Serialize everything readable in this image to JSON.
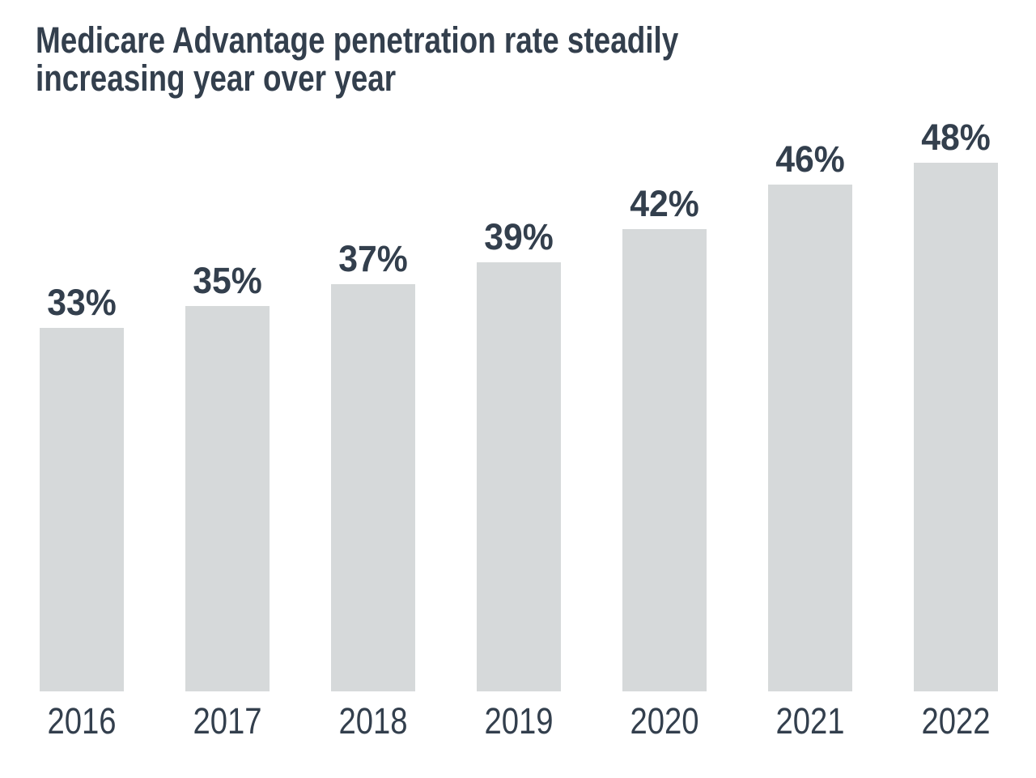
{
  "title": {
    "text": "Medicare Advantage penetration rate steadily increasing year over year",
    "lines": [
      "Medicare Advantage penetration rate steadily",
      "increasing year over year"
    ]
  },
  "chart_data": {
    "type": "bar",
    "title": "Medicare Advantage penetration rate steadily increasing year over year",
    "categories": [
      "2016",
      "2017",
      "2018",
      "2019",
      "2020",
      "2021",
      "2022"
    ],
    "values": [
      33,
      35,
      37,
      39,
      42,
      46,
      48
    ],
    "value_labels": [
      "33%",
      "35%",
      "37%",
      "39%",
      "42%",
      "46%",
      "48%"
    ],
    "unit": "%",
    "xlabel": "",
    "ylabel": "",
    "ylim": [
      0,
      48
    ],
    "grid": false,
    "legend": false,
    "axis_lines": false,
    "bar_color": "#d6d9da",
    "text_color": "#333f4d",
    "background": "#ffffff"
  }
}
